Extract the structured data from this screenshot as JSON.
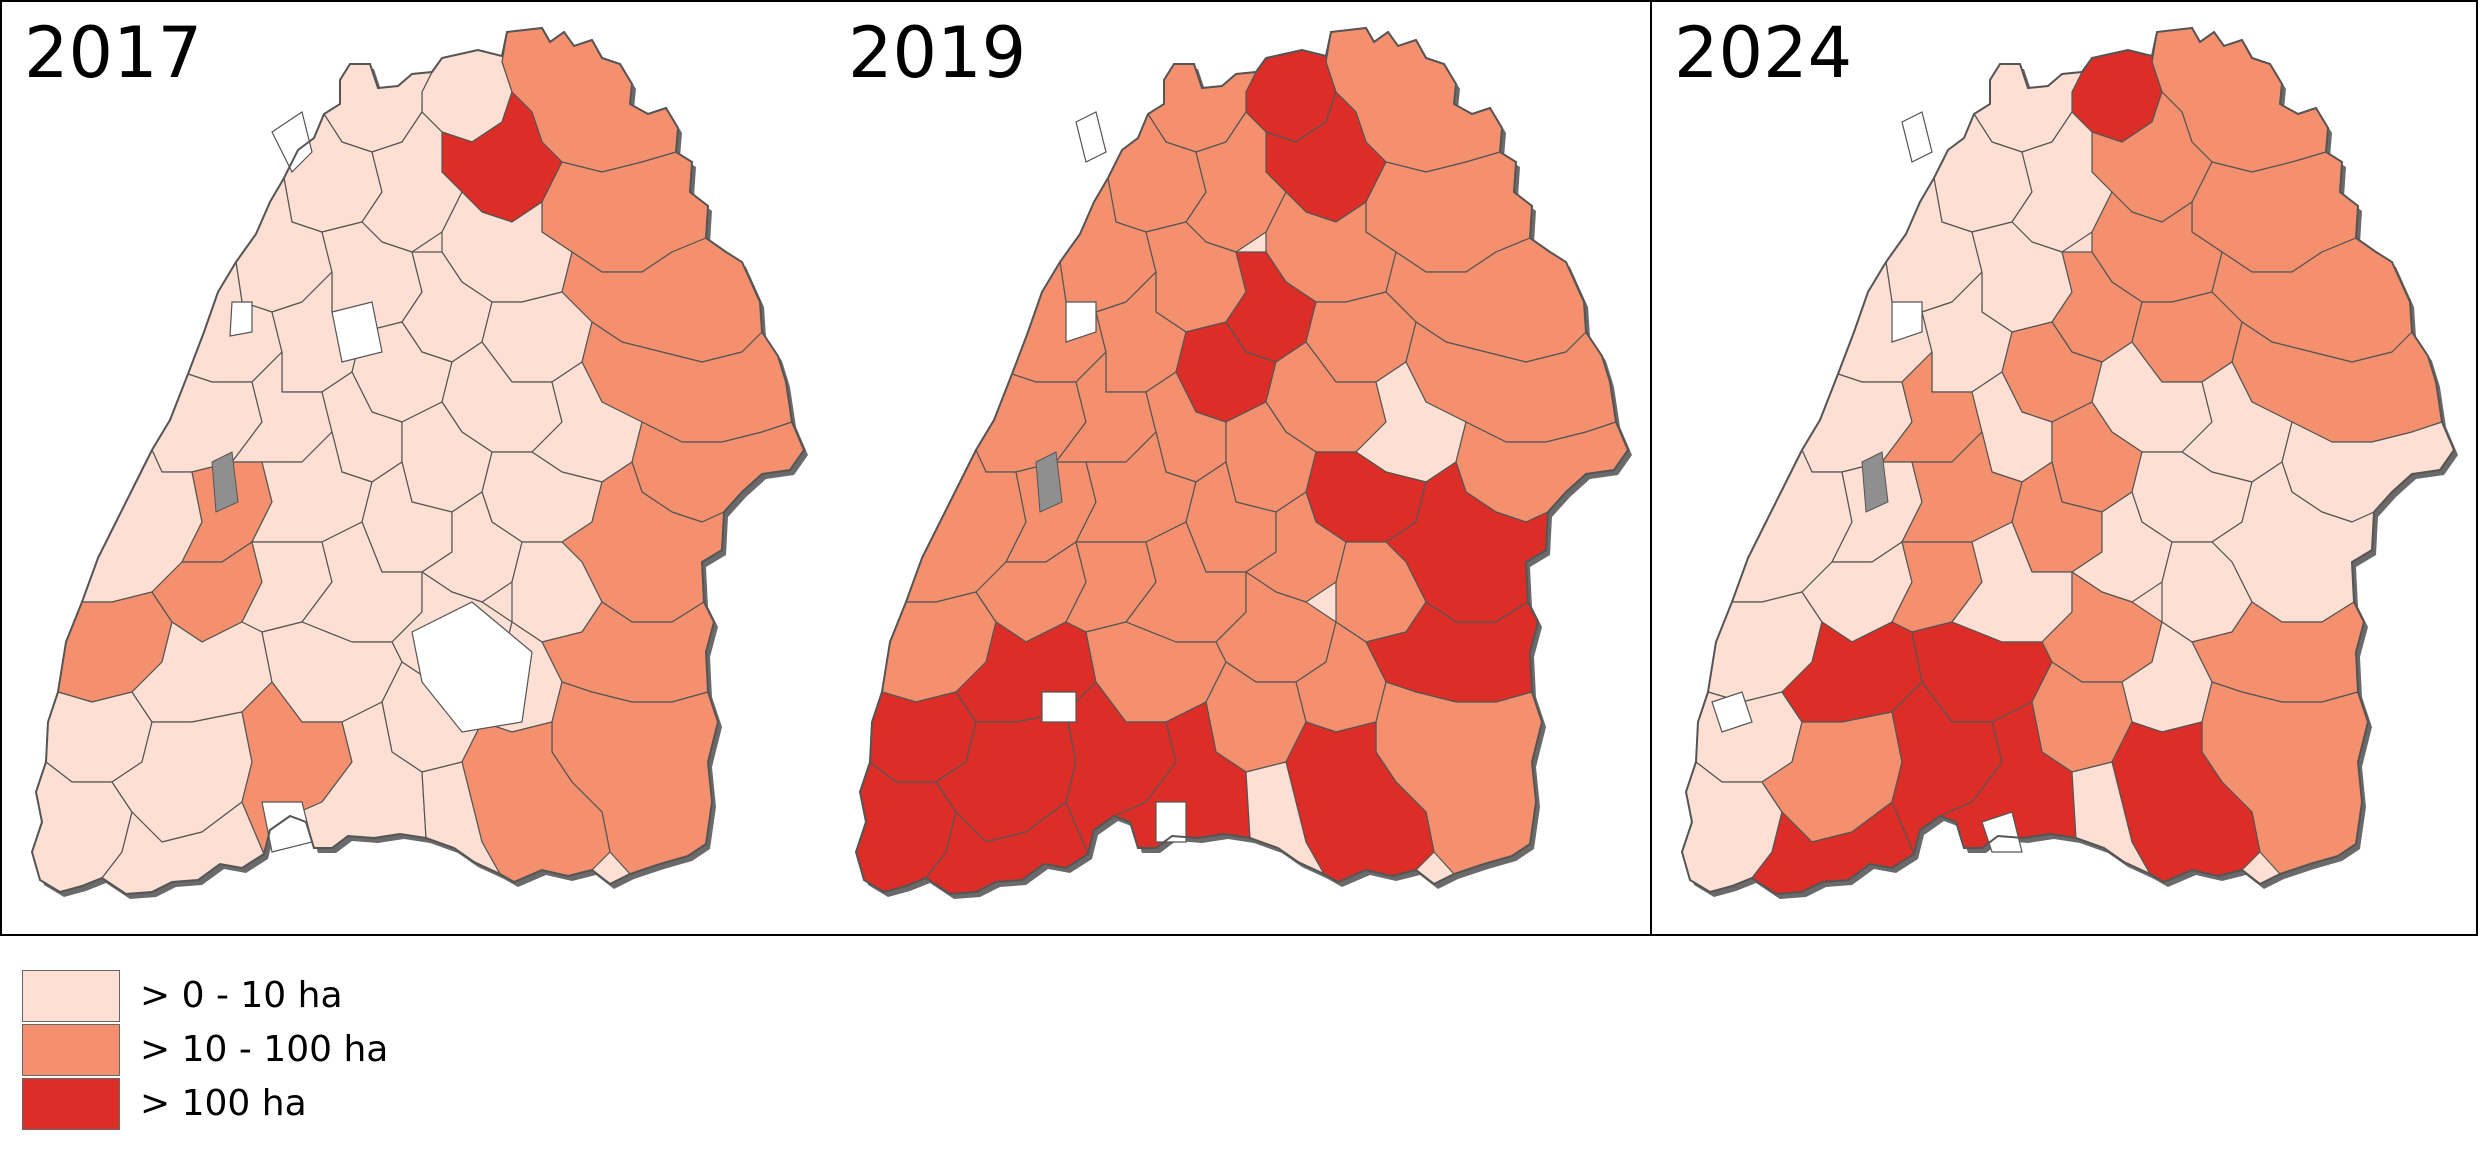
{
  "panels": [
    {
      "year": "2017"
    },
    {
      "year": "2019"
    },
    {
      "year": "2024"
    }
  ],
  "legend": {
    "items": [
      {
        "label": "> 0 - 10 ha",
        "color": "#fde0d3"
      },
      {
        "label": "> 10 - 100 ha",
        "color": "#f5906e"
      },
      {
        "label": "> 100 ha",
        "color": "#dd2d27"
      }
    ]
  },
  "colors": {
    "no_data": "#ffffff",
    "water": "#8f8f8f",
    "border": "#555555",
    "shadow": "#6a6a6a"
  }
}
